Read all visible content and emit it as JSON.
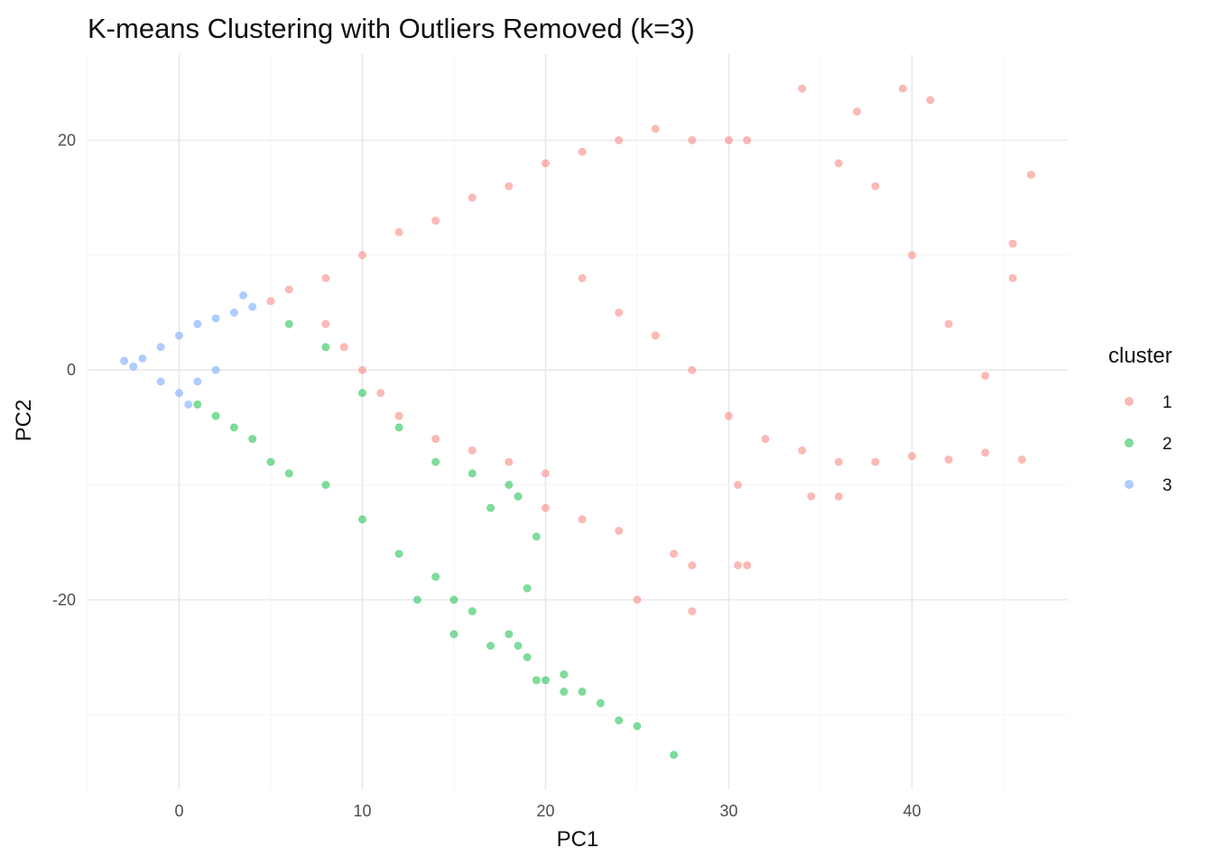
{
  "chart_data": {
    "type": "scatter",
    "title": "K-means Clustering with Outliers Removed (k=3)",
    "xlabel": "PC1",
    "ylabel": "PC2",
    "xlim": [
      -5,
      48.5
    ],
    "ylim": [
      -36.5,
      27.5
    ],
    "x_ticks": [
      0,
      10,
      20,
      30,
      40
    ],
    "y_ticks": [
      -20,
      0,
      20
    ],
    "x_tick_labels": [
      "0",
      "10",
      "20",
      "30",
      "40"
    ],
    "y_tick_labels": [
      "-20",
      "0",
      "20"
    ],
    "grid": true,
    "point_alpha": 0.5,
    "legend": {
      "title": "cluster",
      "position": "right"
    },
    "series": [
      {
        "name": "1",
        "color": "#F8766D",
        "points": [
          [
            5,
            6
          ],
          [
            6,
            7
          ],
          [
            8,
            8
          ],
          [
            10,
            10
          ],
          [
            12,
            12
          ],
          [
            14,
            13
          ],
          [
            16,
            15
          ],
          [
            18,
            16
          ],
          [
            20,
            18
          ],
          [
            22,
            19
          ],
          [
            24,
            20
          ],
          [
            26,
            21
          ],
          [
            28,
            20
          ],
          [
            30,
            20
          ],
          [
            31,
            20
          ],
          [
            34,
            24.5
          ],
          [
            39.5,
            24.5
          ],
          [
            41,
            23.5
          ],
          [
            37,
            22.5
          ],
          [
            8,
            4
          ],
          [
            9,
            2
          ],
          [
            10,
            0
          ],
          [
            11,
            -2
          ],
          [
            12,
            -4
          ],
          [
            14,
            -6
          ],
          [
            16,
            -7
          ],
          [
            18,
            -8
          ],
          [
            20,
            -9
          ],
          [
            22,
            8
          ],
          [
            24,
            5
          ],
          [
            26,
            3
          ],
          [
            28,
            0
          ],
          [
            30,
            -4
          ],
          [
            32,
            -6
          ],
          [
            34,
            -7
          ],
          [
            36,
            -8
          ],
          [
            38,
            -8
          ],
          [
            40,
            -7.5
          ],
          [
            42,
            -7.8
          ],
          [
            44,
            -7.2
          ],
          [
            46,
            -7.8
          ],
          [
            44,
            -0.5
          ],
          [
            42,
            4
          ],
          [
            40,
            10
          ],
          [
            38,
            16
          ],
          [
            36,
            18
          ],
          [
            45.5,
            8
          ],
          [
            46.5,
            17
          ],
          [
            45.5,
            11
          ],
          [
            31,
            -17
          ],
          [
            30.5,
            -17
          ],
          [
            28,
            -17
          ],
          [
            27,
            -16
          ],
          [
            25,
            -20
          ],
          [
            28,
            -21
          ],
          [
            34.5,
            -11
          ],
          [
            36,
            -11
          ],
          [
            30.5,
            -10
          ],
          [
            20,
            -12
          ],
          [
            22,
            -13
          ],
          [
            24,
            -14
          ]
        ]
      },
      {
        "name": "2",
        "color": "#00BA38",
        "points": [
          [
            1,
            -3
          ],
          [
            2,
            -4
          ],
          [
            3,
            -5
          ],
          [
            4,
            -6
          ],
          [
            5,
            -8
          ],
          [
            6,
            -9
          ],
          [
            8,
            -10
          ],
          [
            10,
            -13
          ],
          [
            12,
            -16
          ],
          [
            14,
            -18
          ],
          [
            15,
            -20
          ],
          [
            16,
            -21
          ],
          [
            18,
            -23
          ],
          [
            19,
            -25
          ],
          [
            20,
            -27
          ],
          [
            21,
            -28
          ],
          [
            22,
            -28
          ],
          [
            24,
            -30.5
          ],
          [
            25,
            -31
          ],
          [
            27,
            -33.5
          ],
          [
            17,
            -24
          ],
          [
            18.5,
            -24
          ],
          [
            19.5,
            -27
          ],
          [
            21,
            -26.5
          ],
          [
            23,
            -29
          ],
          [
            6,
            4
          ],
          [
            8,
            2
          ],
          [
            10,
            -2
          ],
          [
            12,
            -5
          ],
          [
            14,
            -8
          ],
          [
            16,
            -9
          ],
          [
            18,
            -10
          ],
          [
            18.5,
            -11
          ],
          [
            17,
            -12
          ],
          [
            19.5,
            -14.5
          ],
          [
            19,
            -19
          ],
          [
            15,
            -23
          ],
          [
            13,
            -20
          ]
        ]
      },
      {
        "name": "3",
        "color": "#619CFF",
        "points": [
          [
            -3,
            0.8
          ],
          [
            -2.5,
            0.3
          ],
          [
            -2,
            1
          ],
          [
            -1,
            2
          ],
          [
            0,
            3
          ],
          [
            1,
            4
          ],
          [
            2,
            4.5
          ],
          [
            3,
            5
          ],
          [
            3.5,
            6.5
          ],
          [
            4,
            5.5
          ],
          [
            -1,
            -1
          ],
          [
            0,
            -2
          ],
          [
            0.5,
            -3
          ],
          [
            1,
            -1
          ],
          [
            2,
            0
          ]
        ]
      }
    ]
  }
}
